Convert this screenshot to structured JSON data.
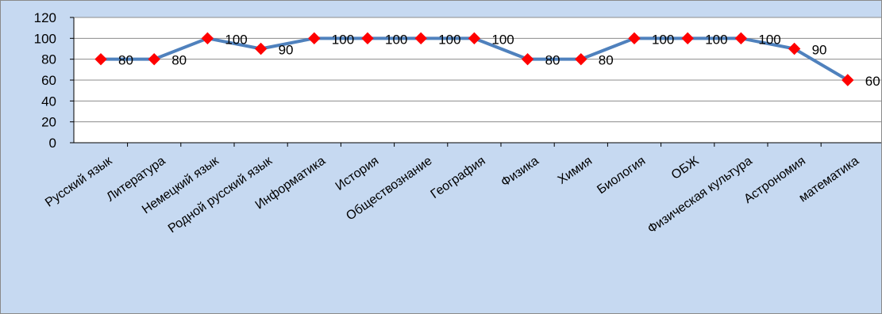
{
  "chart_data": {
    "type": "line",
    "categories": [
      "Русский язык",
      "Литература",
      "Немецкий язык",
      "Родной русский язык",
      "Информатика",
      "История",
      "Обществознание",
      "География",
      "Физика",
      "Химия",
      "Биология",
      "ОБЖ",
      "Физическая культура",
      "Астрономия",
      "математика"
    ],
    "values": [
      80,
      80,
      100,
      90,
      100,
      100,
      100,
      100,
      80,
      80,
      100,
      100,
      100,
      90,
      60
    ],
    "ylim": [
      0,
      120
    ],
    "yticks": [
      0,
      20,
      40,
      60,
      80,
      100,
      120
    ],
    "grid": true,
    "data_labels": true,
    "colors": {
      "line": "#4f81bd",
      "marker": "#ff0000",
      "background": "#c6d9f1",
      "plot_background": "#ffffff",
      "grid": "#8c8c8c"
    }
  }
}
